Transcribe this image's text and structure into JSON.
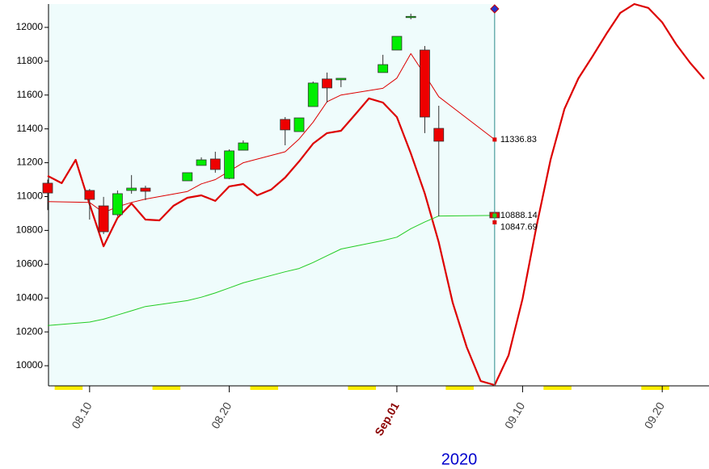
{
  "chart_data": {
    "type": "candlestick",
    "x": [
      "2020-08-07",
      "2020-08-10",
      "2020-08-11",
      "2020-08-12",
      "2020-08-13",
      "2020-08-14",
      "2020-08-17",
      "2020-08-18",
      "2020-08-19",
      "2020-08-20",
      "2020-08-21",
      "2020-08-24",
      "2020-08-25",
      "2020-08-26",
      "2020-08-27",
      "2020-08-28",
      "2020-08-31",
      "2020-09-01",
      "2020-09-02",
      "2020-09-03",
      "2020-09-04",
      "2020-09-08"
    ],
    "open": [
      11079,
      11036,
      10945,
      10893,
      11036,
      11050,
      11093,
      11184,
      11222,
      11107,
      11274,
      11456,
      11384,
      11532,
      11695,
      11690,
      11733,
      11866,
      12058,
      11866,
      11403,
      10907
    ],
    "high": [
      11100,
      11045,
      10998,
      11036,
      11127,
      11064,
      11141,
      11232,
      11265,
      11279,
      11332,
      11470,
      11465,
      11680,
      11733,
      11699,
      11838,
      11947,
      12081,
      11890,
      11537,
      10907
    ],
    "low": [
      10920,
      10864,
      10778,
      10883,
      11017,
      10979,
      11093,
      11184,
      11141,
      11103,
      11274,
      11303,
      11384,
      11532,
      11556,
      11647,
      11733,
      11866,
      12048,
      11375,
      10883,
      10874
    ],
    "close": [
      11021,
      10983,
      10792,
      11017,
      11050,
      11031,
      11141,
      11217,
      11160,
      11270,
      11317,
      11394,
      11465,
      11671,
      11642,
      11699,
      11780,
      11947,
      12065,
      11470,
      11327,
      10874
    ],
    "up_color": "#00ee00",
    "down_color": "#ee0000",
    "lines": [
      {
        "color": "#dd0000",
        "width": 2.2,
        "x": [
          "2020-08-07",
          "2020-08-08",
          "2020-08-09",
          "2020-08-10",
          "2020-08-11",
          "2020-08-12",
          "2020-08-13",
          "2020-08-14",
          "2020-08-15",
          "2020-08-16",
          "2020-08-17",
          "2020-08-18",
          "2020-08-19",
          "2020-08-20",
          "2020-08-21",
          "2020-08-22",
          "2020-08-23",
          "2020-08-24",
          "2020-08-25",
          "2020-08-26",
          "2020-08-27",
          "2020-08-28",
          "2020-08-29",
          "2020-08-30",
          "2020-08-31",
          "2020-09-01",
          "2020-09-02",
          "2020-09-03",
          "2020-09-04",
          "2020-09-05",
          "2020-09-06",
          "2020-09-07",
          "2020-09-08",
          "2020-09-09",
          "2020-09-10",
          "2020-09-11",
          "2020-09-12",
          "2020-09-13",
          "2020-09-14",
          "2020-09-15",
          "2020-09-16",
          "2020-09-17",
          "2020-09-18",
          "2020-09-19",
          "2020-09-20",
          "2020-09-21",
          "2020-09-22",
          "2020-09-23"
        ],
        "values": [
          11122,
          11079,
          11217,
          10955,
          10706,
          10874,
          10959,
          10864,
          10859,
          10945,
          10993,
          11007,
          10974,
          11060,
          11074,
          11007,
          11041,
          11112,
          11208,
          11313,
          11375,
          11389,
          11484,
          11580,
          11556,
          11470,
          11255,
          11017,
          10730,
          10372,
          10110,
          9909,
          9886,
          10062,
          10396,
          10826,
          11217,
          11518,
          11699,
          11828,
          11962,
          12086,
          12138,
          12115,
          12029,
          11900,
          11790,
          11695
        ]
      },
      {
        "color": "#dd0000",
        "width": 1,
        "x": [
          "2020-08-07",
          "2020-08-10",
          "2020-08-11",
          "2020-08-12",
          "2020-08-13",
          "2020-08-14",
          "2020-08-17",
          "2020-08-18",
          "2020-08-19",
          "2020-08-20",
          "2020-08-21",
          "2020-08-24",
          "2020-08-25",
          "2020-08-26",
          "2020-08-27",
          "2020-08-28",
          "2020-08-31",
          "2020-09-01",
          "2020-09-02",
          "2020-09-03",
          "2020-09-04",
          "2020-09-08"
        ],
        "values": [
          10970,
          10965,
          10905,
          10940,
          10965,
          10985,
          11030,
          11075,
          11100,
          11150,
          11200,
          11265,
          11340,
          11440,
          11560,
          11600,
          11640,
          11700,
          11845,
          11720,
          11590,
          11336.83
        ]
      },
      {
        "color": "#22cc22",
        "width": 1,
        "x": [
          "2020-08-07",
          "2020-08-10",
          "2020-08-11",
          "2020-08-12",
          "2020-08-13",
          "2020-08-14",
          "2020-08-17",
          "2020-08-18",
          "2020-08-19",
          "2020-08-20",
          "2020-08-21",
          "2020-08-24",
          "2020-08-25",
          "2020-08-26",
          "2020-08-27",
          "2020-08-28",
          "2020-08-31",
          "2020-09-01",
          "2020-09-02",
          "2020-09-03",
          "2020-09-04",
          "2020-09-08"
        ],
        "values": [
          10238,
          10258,
          10275,
          10300,
          10325,
          10350,
          10385,
          10405,
          10430,
          10460,
          10490,
          10555,
          10575,
          10610,
          10650,
          10690,
          10740,
          10760,
          10810,
          10850,
          10885,
          10888.14
        ]
      }
    ],
    "annotations": [
      {
        "x": "2020-09-08",
        "value": 11336.83,
        "color": "#dd0000"
      },
      {
        "x": "2020-09-08",
        "value": 10888.14,
        "color": "#22cc22"
      },
      {
        "x": "2020-09-08",
        "value": 10847.69,
        "color": "#dd0000"
      }
    ],
    "xlim": [
      "2020-08-07",
      "2020-09-23"
    ],
    "xticks": [
      {
        "value": "2020-08-10",
        "label": "08.10"
      },
      {
        "value": "2020-08-20",
        "label": "08.20"
      },
      {
        "value": "2020-09-01",
        "label": "Sep.01",
        "color": "#8b0000"
      },
      {
        "value": "2020-09-10",
        "label": "09.10"
      },
      {
        "value": "2020-09-20",
        "label": "09.20"
      }
    ],
    "ylim": [
      9881,
      12138
    ],
    "yticks": [
      10000,
      10200,
      10400,
      10600,
      10800,
      11000,
      11200,
      11400,
      11600,
      11800,
      12000
    ],
    "year_label": "2020",
    "history_background": "#effcfc",
    "weekend_color": "#ffee00"
  }
}
